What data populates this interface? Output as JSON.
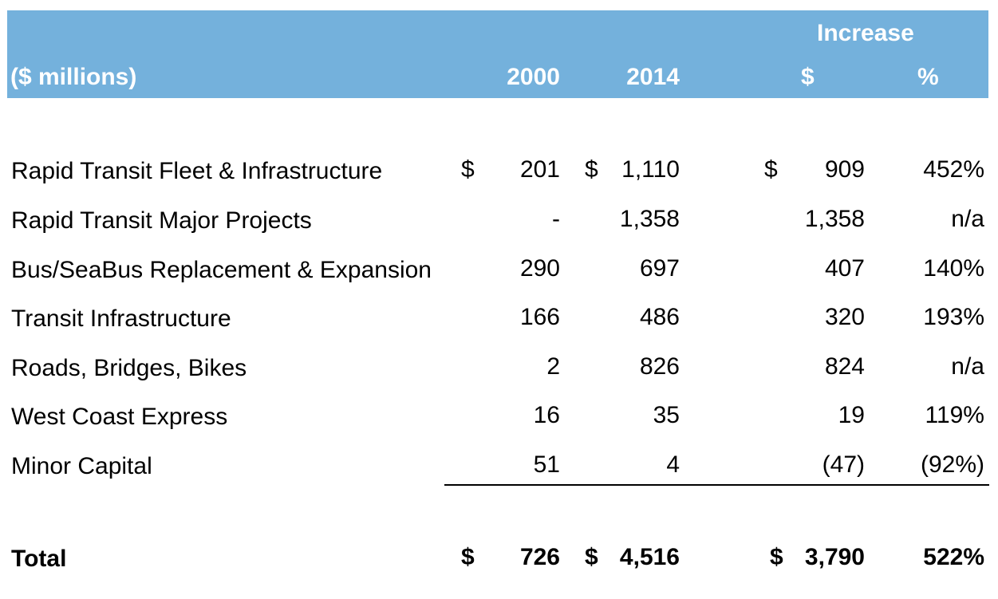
{
  "chart_data": {
    "type": "table",
    "header": {
      "group_label": "Increase",
      "unit_label": "($ millions)",
      "columns": [
        "2000",
        "2014",
        "$",
        "%"
      ]
    },
    "rows": [
      {
        "label": "Rapid Transit Fleet & Infrastructure",
        "v2000": "201",
        "v2014": "1,110",
        "inc_dollars": "909",
        "inc_pct": "452%",
        "c1": "$",
        "c2": "$",
        "c3": "$"
      },
      {
        "label": "Rapid Transit Major Projects",
        "v2000": "-",
        "v2014": "1,358",
        "inc_dollars": "1,358",
        "inc_pct": "n/a"
      },
      {
        "label": "Bus/SeaBus Replacement & Expansion",
        "v2000": "290",
        "v2014": "697",
        "inc_dollars": "407",
        "inc_pct": "140%"
      },
      {
        "label": "Transit Infrastructure",
        "v2000": "166",
        "v2014": "486",
        "inc_dollars": "320",
        "inc_pct": "193%"
      },
      {
        "label": "Roads, Bridges, Bikes",
        "v2000": "2",
        "v2014": "826",
        "inc_dollars": "824",
        "inc_pct": "n/a"
      },
      {
        "label": "West Coast Express",
        "v2000": "16",
        "v2014": "35",
        "inc_dollars": "19",
        "inc_pct": "119%"
      },
      {
        "label": "Minor Capital",
        "v2000": "51",
        "v2014": "4",
        "inc_dollars": "(47)",
        "inc_pct": "(92%)"
      }
    ],
    "total": {
      "label": "Total",
      "v2000": "726",
      "v2014": "4,516",
      "inc_dollars": "3,790",
      "inc_pct": "522%",
      "c1": "$",
      "c2": "$",
      "c3": "$"
    }
  },
  "colors": {
    "header_bg": "#74b1dc",
    "header_text": "#ffffff",
    "body_text": "#000000"
  }
}
